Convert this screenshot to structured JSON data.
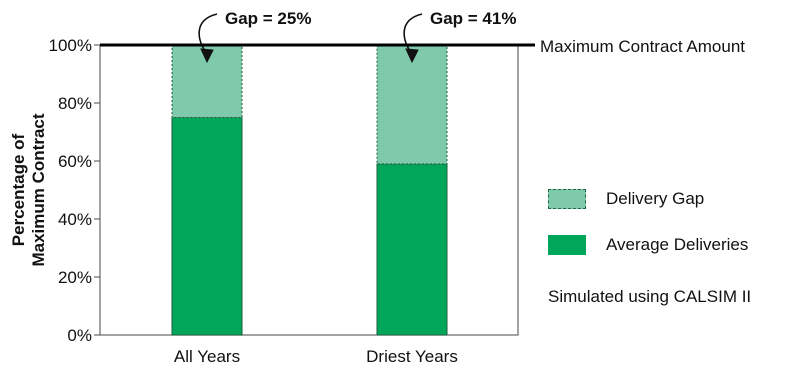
{
  "colors": {
    "average": "#00a65a",
    "gap": "#7fcaab",
    "edge": "#1a5e3c",
    "axis": "#666666",
    "reference": "#000000"
  },
  "chart_data": {
    "type": "bar",
    "stacked": true,
    "categories": [
      "All Years",
      "Driest Years"
    ],
    "series": [
      {
        "name": "Average Deliveries",
        "values": [
          75,
          59
        ],
        "color_key": "average"
      },
      {
        "name": "Delivery Gap",
        "values": [
          25,
          41
        ],
        "color_key": "gap"
      }
    ],
    "ylabel_lines": [
      "Percentage of",
      "Maximum Contract"
    ],
    "ylim": [
      0,
      100
    ],
    "yticks": [
      0,
      20,
      40,
      60,
      80,
      100
    ],
    "ytick_labels": [
      "0%",
      "20%",
      "40%",
      "60%",
      "80%",
      "100%"
    ],
    "grid": false,
    "reference_line": {
      "value": 100,
      "label": "Maximum Contract Amount"
    },
    "annotations": [
      "Gap = 25%",
      "Gap = 41%"
    ]
  },
  "legend": {
    "items": [
      {
        "label": "Delivery Gap",
        "color_key": "gap"
      },
      {
        "label": "Average Deliveries",
        "color_key": "average"
      }
    ],
    "note": "Simulated using CALSIM II"
  }
}
